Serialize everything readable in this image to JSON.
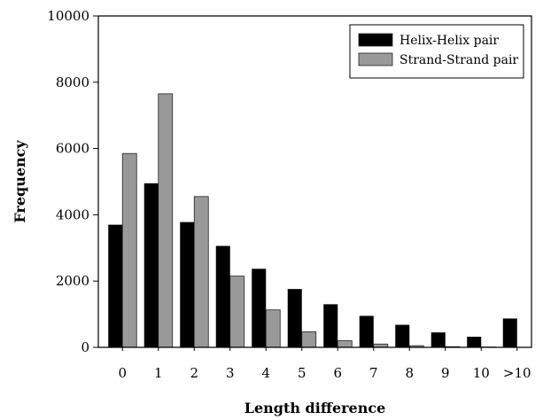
{
  "chart_data": {
    "type": "bar",
    "title": "",
    "xlabel": "Length difference",
    "ylabel": "Frequency",
    "categories": [
      "0",
      "1",
      "2",
      "3",
      "4",
      "5",
      "6",
      "7",
      "8",
      "9",
      "10",
      ">10"
    ],
    "series": [
      {
        "name": "Helix-Helix pair",
        "color": "#000000",
        "values": [
          3700,
          4950,
          3780,
          3060,
          2370,
          1760,
          1300,
          950,
          680,
          450,
          320,
          870
        ]
      },
      {
        "name": "Strand-Strand pair",
        "color": "#999999",
        "values": [
          5850,
          7650,
          4550,
          2150,
          1130,
          470,
          200,
          100,
          50,
          20,
          10,
          0
        ]
      }
    ],
    "ylim": [
      0,
      10000
    ],
    "yticks": [
      "0",
      "2000",
      "4000",
      "6000",
      "8000",
      "10000"
    ],
    "grid": false,
    "legend_position": "top-right"
  }
}
